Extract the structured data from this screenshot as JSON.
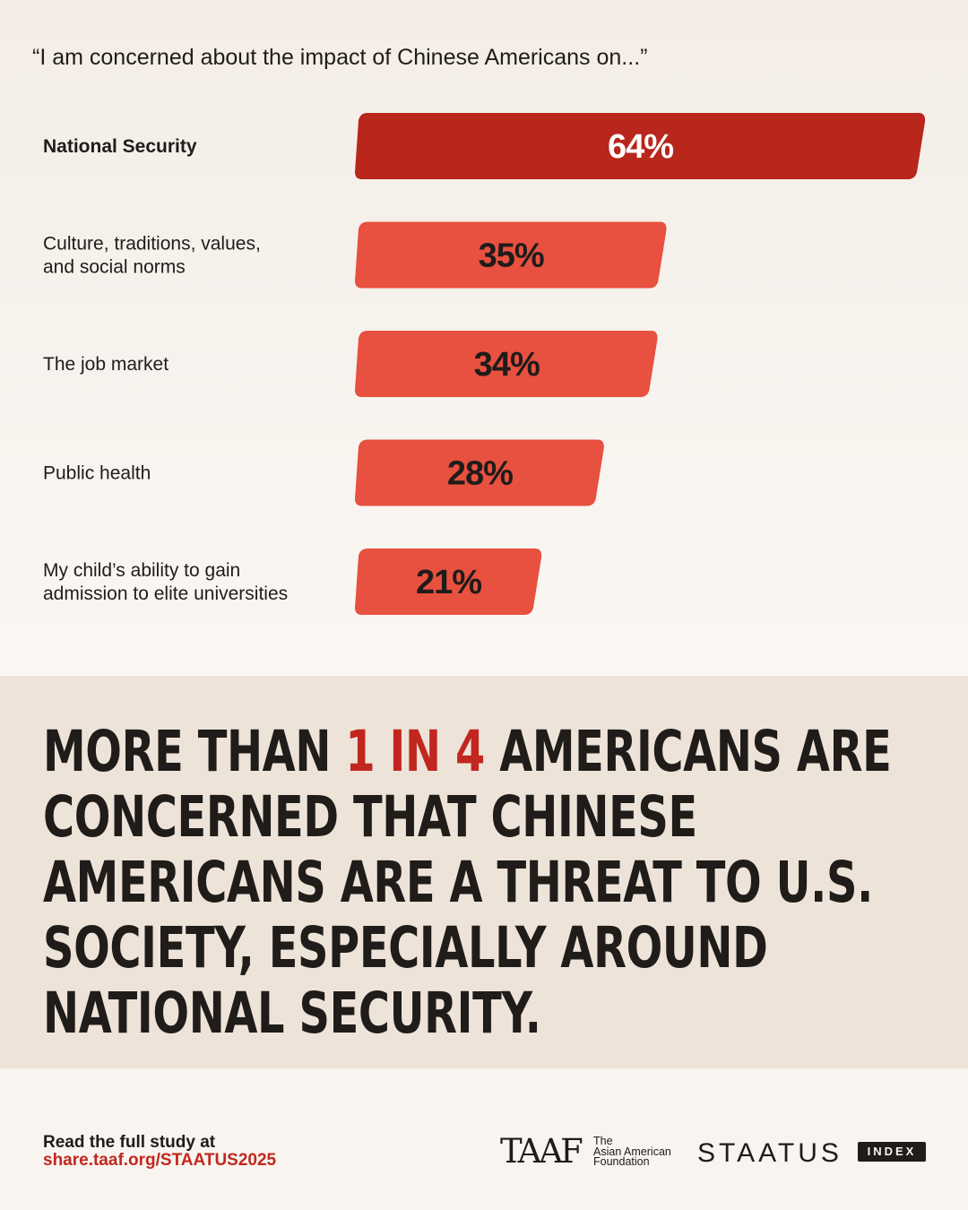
{
  "subtitle": "“I am concerned about the impact of Chinese Americans on...”",
  "chart_data": {
    "type": "bar",
    "orientation": "horizontal",
    "categories": [
      [
        "National Security"
      ],
      [
        "Culture, traditions, values,",
        "and social norms"
      ],
      [
        "The job market"
      ],
      [
        "Public health"
      ],
      [
        "My child’s ability to gain",
        "admission to elite universities"
      ]
    ],
    "values": [
      64,
      35,
      34,
      28,
      21
    ],
    "value_labels": [
      "64%",
      "35%",
      "34%",
      "28%",
      "21%"
    ],
    "unit": "%",
    "xlim": [
      0,
      64
    ],
    "highlight_index": 0,
    "colors": {
      "highlight": "#b8261c",
      "bar": "#e8503f",
      "highlight_text": "#ffffff",
      "bar_text": "#1f1c1a"
    },
    "grid": false,
    "legend": "none"
  },
  "headline": {
    "before": "More than ",
    "accent": "1 in 4",
    "after": " Americans are concerned that Chinese Americans are a threat to U.S. society, especially around national security."
  },
  "footer": {
    "read_text": "Read the full study at",
    "link": "share.taaf.org/STAATUS2025",
    "taaf_mark": "TAAF",
    "taaf_name": [
      "The",
      "Asian American",
      "Foundation"
    ],
    "staatus": "STAATUS",
    "index": "INDEX"
  },
  "colors": {
    "accent": "#c1271f",
    "headline_band": "#ede3d8",
    "text": "#1f1c1a"
  }
}
